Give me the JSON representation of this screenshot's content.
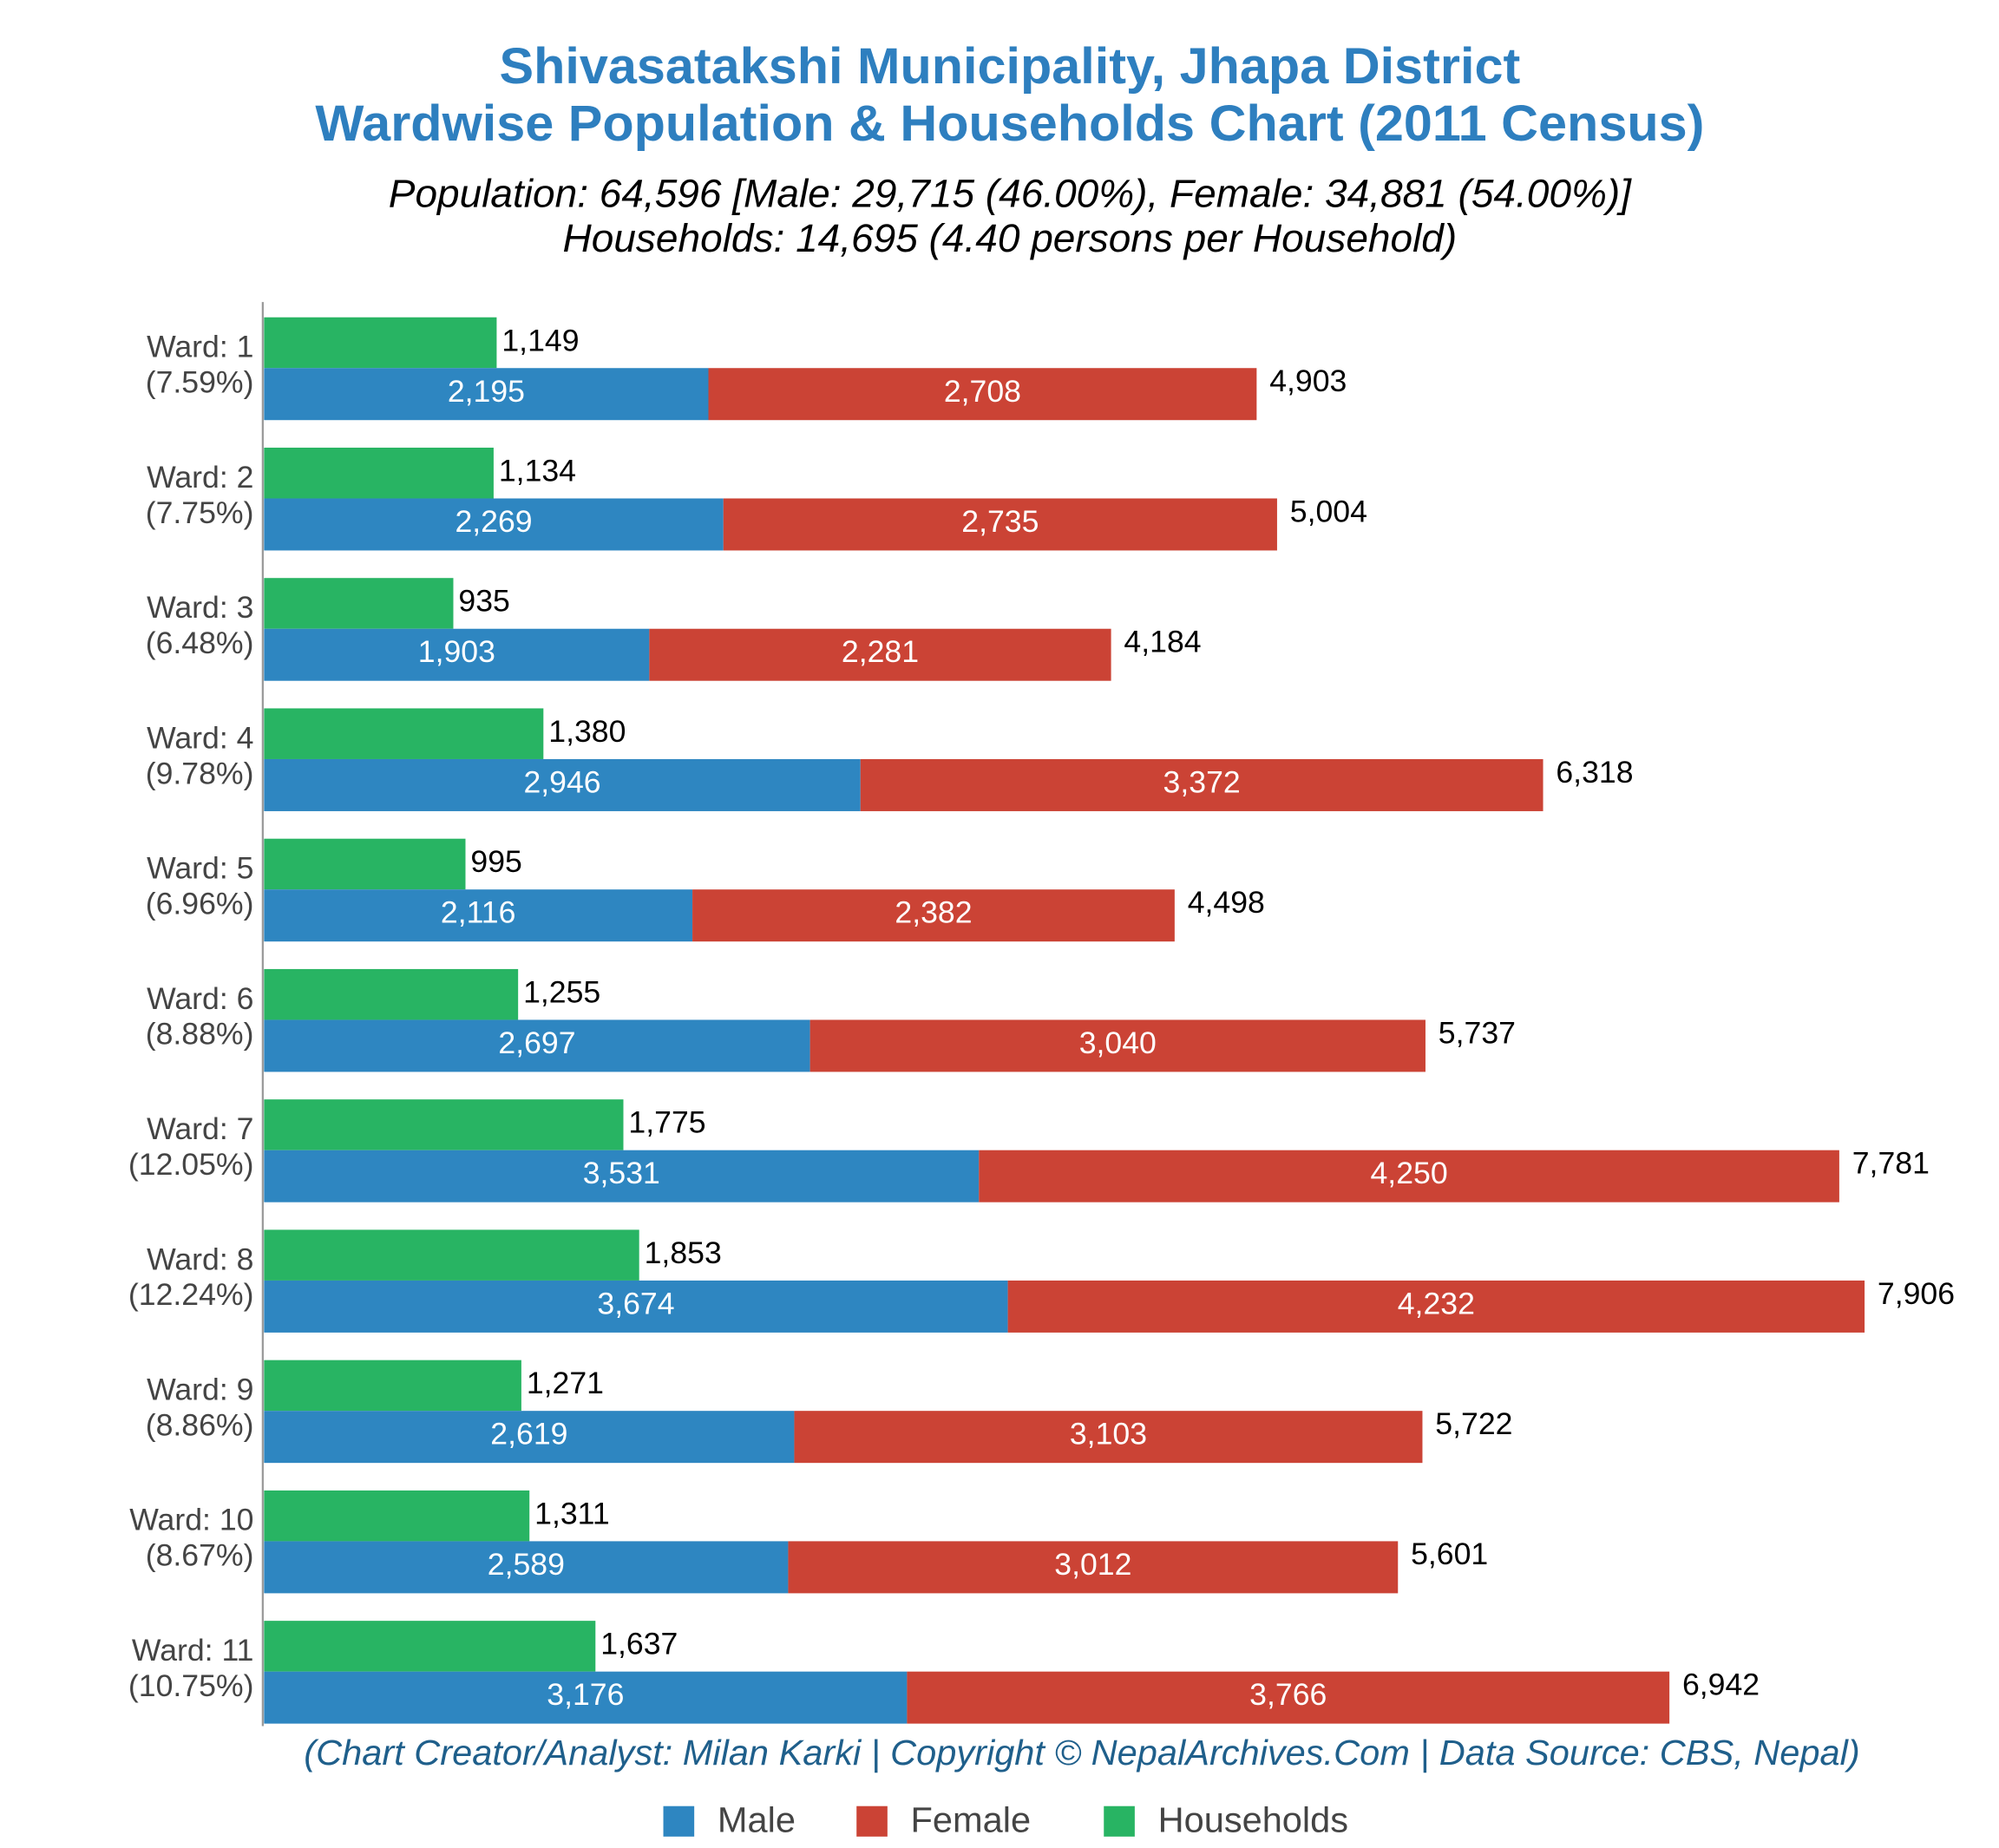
{
  "chart_data": {
    "type": "bar",
    "title": "Shivasatakshi Municipality, Jhapa District",
    "title2": "Wardwise Population & Households Chart (2011 Census)",
    "subtitle": "Population: 64,596 [Male: 29,715 (46.00%), Female: 34,881 (54.00%)]",
    "subtitle2": "Households: 14,695 (4.40 persons per Household)",
    "footer": "(Chart Creator/Analyst: Milan Karki | Copyright © NepalArchives.Com | Data Source: CBS, Nepal)",
    "categories": [
      "Ward: 1",
      "Ward: 2",
      "Ward: 3",
      "Ward: 4",
      "Ward: 5",
      "Ward: 6",
      "Ward: 7",
      "Ward: 8",
      "Ward: 9",
      "Ward: 10",
      "Ward: 11"
    ],
    "ward_shares": [
      "(7.59%)",
      "(7.75%)",
      "(6.48%)",
      "(9.78%)",
      "(6.96%)",
      "(8.88%)",
      "(12.05%)",
      "(12.24%)",
      "(8.86%)",
      "(8.67%)",
      "(10.75%)"
    ],
    "series": [
      {
        "name": "Male",
        "color": "#2e86c1",
        "values": [
          2195,
          2269,
          1903,
          2946,
          2116,
          2697,
          3531,
          3674,
          2619,
          2589,
          3176
        ],
        "value_labels": [
          "2,195",
          "2,269",
          "1,903",
          "2,946",
          "2,116",
          "2,697",
          "3,531",
          "3,674",
          "2,619",
          "2,589",
          "3,176"
        ]
      },
      {
        "name": "Female",
        "color": "#cb4335",
        "values": [
          2708,
          2735,
          2281,
          3372,
          2382,
          3040,
          4250,
          4232,
          3103,
          3012,
          3766
        ],
        "value_labels": [
          "2,708",
          "2,735",
          "2,281",
          "3,372",
          "2,382",
          "3,040",
          "4,250",
          "4,232",
          "3,103",
          "3,012",
          "3,766"
        ]
      },
      {
        "name": "Households",
        "color": "#28b463",
        "values": [
          1149,
          1134,
          935,
          1380,
          995,
          1255,
          1775,
          1853,
          1271,
          1311,
          1637
        ],
        "value_labels": [
          "1,149",
          "1,134",
          "935",
          "1,380",
          "995",
          "1,255",
          "1,775",
          "1,853",
          "1,271",
          "1,311",
          "1,637"
        ]
      }
    ],
    "totals": {
      "values": [
        4903,
        5004,
        4184,
        6318,
        4498,
        5737,
        7781,
        7906,
        5722,
        5601,
        6942
      ],
      "value_labels": [
        "4,903",
        "5,004",
        "4,184",
        "6,318",
        "4,498",
        "5,737",
        "7,781",
        "7,906",
        "5,722",
        "5,601",
        "6,942"
      ]
    },
    "xlim": [
      0,
      8500
    ],
    "legend": "bottom"
  }
}
